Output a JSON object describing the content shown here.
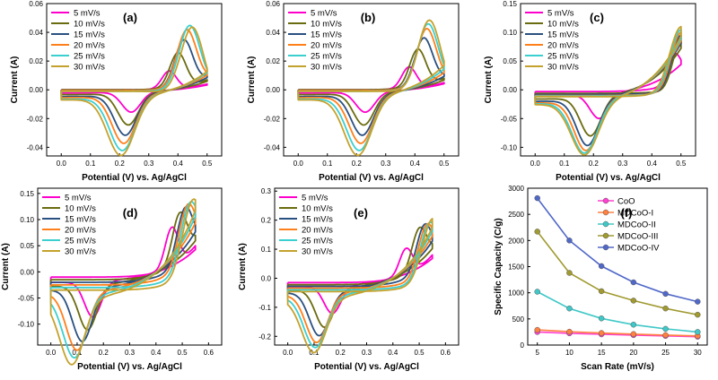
{
  "chart_data": [
    {
      "type": "line",
      "panel_label": "(a)",
      "xlabel": "Potential (V) vs. Ag/AgCl",
      "ylabel": "Current (A)",
      "xlim": [
        -0.05,
        0.55
      ],
      "ylim": [
        -0.046,
        0.06
      ],
      "xticks": [
        0.0,
        0.1,
        0.2,
        0.3,
        0.4,
        0.5
      ],
      "xtick_labels": [
        "0.0",
        "0.1",
        "0.2",
        "0.3",
        "0.4",
        "0.5"
      ],
      "yticks": [
        -0.04,
        -0.02,
        0.0,
        0.02,
        0.04,
        0.06
      ],
      "ytick_labels": [
        "-0.04",
        "-0.02",
        "0.00",
        "0.02",
        "0.04",
        "0.06"
      ],
      "legend": "top-left",
      "curve": {
        "vmin": 0.0,
        "vmax": 0.5,
        "anodic_peak_v": [
          0.37,
          0.4,
          0.42,
          0.43,
          0.44,
          0.45
        ],
        "anodic_peak_i": [
          0.0125,
          0.024,
          0.032,
          0.039,
          0.044,
          0.047
        ],
        "cathodic_peak_v": [
          0.24,
          0.23,
          0.22,
          0.215,
          0.21,
          0.205
        ],
        "cathodic_peak_i": [
          -0.014,
          -0.022,
          -0.028,
          -0.033,
          -0.037,
          -0.04
        ],
        "end_current": [
          0.004,
          0.007,
          0.01,
          0.012,
          0.014,
          0.015
        ],
        "baseline": [
          0.0,
          0.0,
          -0.0005,
          -0.0005,
          -0.001,
          -0.001
        ]
      },
      "series": [
        {
          "name": "5 mV/s"
        },
        {
          "name": "10 mV/s"
        },
        {
          "name": "15 mV/s"
        },
        {
          "name": "20 mV/s"
        },
        {
          "name": "25 mV/s"
        },
        {
          "name": "30 mV/s"
        }
      ]
    },
    {
      "type": "line",
      "panel_label": "(b)",
      "xlabel": "Potential (V) vs. Ag/AgCl",
      "ylabel": "Current (A)",
      "xlim": [
        -0.05,
        0.55
      ],
      "ylim": [
        -0.046,
        0.06
      ],
      "xticks": [
        0.0,
        0.1,
        0.2,
        0.3,
        0.4,
        0.5
      ],
      "xtick_labels": [
        "0.0",
        "0.1",
        "0.2",
        "0.3",
        "0.4",
        "0.5"
      ],
      "yticks": [
        -0.04,
        -0.02,
        0.0,
        0.02,
        0.04,
        0.06
      ],
      "ytick_labels": [
        "-0.04",
        "-0.02",
        "0.00",
        "0.02",
        "0.04",
        "0.06"
      ],
      "legend": "top-left",
      "curve": {
        "vmin": 0.0,
        "vmax": 0.5,
        "anodic_peak_v": [
          0.38,
          0.41,
          0.43,
          0.44,
          0.445,
          0.45
        ],
        "anodic_peak_i": [
          0.015,
          0.026,
          0.033,
          0.04,
          0.045,
          0.05
        ],
        "cathodic_peak_v": [
          0.23,
          0.225,
          0.22,
          0.215,
          0.21,
          0.205
        ],
        "cathodic_peak_i": [
          -0.014,
          -0.022,
          -0.028,
          -0.033,
          -0.037,
          -0.04
        ],
        "end_current": [
          0.005,
          0.008,
          0.011,
          0.014,
          0.017,
          0.02
        ],
        "baseline": [
          0.0,
          0.0,
          -0.0005,
          -0.0005,
          -0.001,
          -0.001
        ]
      },
      "series": [
        {
          "name": "5 mV/s"
        },
        {
          "name": "10 mV/s"
        },
        {
          "name": "15 mV/s"
        },
        {
          "name": "20 mV/s"
        },
        {
          "name": "25 mV/s"
        },
        {
          "name": "30 mV/s"
        }
      ]
    },
    {
      "type": "line",
      "panel_label": "(c)",
      "xlabel": "Potential (V) vs. Ag/AgCl",
      "ylabel": "Current (A)",
      "xlim": [
        -0.05,
        0.55
      ],
      "ylim": [
        -0.115,
        0.15
      ],
      "xticks": [
        0.0,
        0.1,
        0.2,
        0.3,
        0.4,
        0.5
      ],
      "xtick_labels": [
        "0.0",
        "0.1",
        "0.2",
        "0.3",
        "0.4",
        "0.5"
      ],
      "yticks": [
        -0.1,
        -0.05,
        0.0,
        0.05,
        0.1,
        0.15
      ],
      "ytick_labels": [
        "-0.10",
        "-0.05",
        "0.00",
        "0.05",
        "0.10",
        "0.15"
      ],
      "legend": "top-left",
      "curve": {
        "vmin": 0.0,
        "vmax": 0.5,
        "anodic_peak_v": [
          0.48,
          0.5,
          0.5,
          0.5,
          0.5,
          0.5
        ],
        "anodic_peak_i": [
          0.052,
          0.085,
          0.095,
          0.1,
          0.105,
          0.11
        ],
        "cathodic_peak_v": [
          0.22,
          0.19,
          0.18,
          0.175,
          0.17,
          0.17
        ],
        "cathodic_peak_i": [
          -0.043,
          -0.067,
          -0.08,
          -0.086,
          -0.089,
          -0.091
        ],
        "end_current": [
          0.052,
          0.085,
          0.095,
          0.1,
          0.105,
          0.11
        ],
        "baseline": [
          -0.003,
          -0.006,
          -0.008,
          -0.01,
          -0.011,
          -0.012
        ]
      },
      "series": [
        {
          "name": "5 mV/s"
        },
        {
          "name": "10 mV/s"
        },
        {
          "name": "15 mV/s"
        },
        {
          "name": "20 mV/s"
        },
        {
          "name": "25 mV/s"
        },
        {
          "name": "30 mV/s"
        }
      ]
    },
    {
      "type": "line",
      "panel_label": "(d)",
      "xlabel": "Potential (V) vs. Ag/AgCl",
      "ylabel": "Current (A)",
      "xlim": [
        -0.05,
        0.65
      ],
      "ylim": [
        -0.14,
        0.16
      ],
      "xticks": [
        0.0,
        0.1,
        0.2,
        0.3,
        0.4,
        0.5,
        0.6
      ],
      "xtick_labels": [
        "0.0",
        "0.1",
        "0.2",
        "0.3",
        "0.4",
        "0.5",
        "0.6"
      ],
      "yticks": [
        -0.1,
        -0.05,
        0.0,
        0.05,
        0.1,
        0.15
      ],
      "ytick_labels": [
        "-0.10",
        "-0.05",
        "0.00",
        "0.05",
        "0.10",
        "0.15"
      ],
      "legend": "top-left",
      "curve": {
        "vmin": 0.0,
        "vmax": 0.55,
        "anodic_peak_v": [
          0.46,
          0.49,
          0.51,
          0.52,
          0.53,
          0.54
        ],
        "anodic_peak_i": [
          0.075,
          0.09,
          0.1,
          0.11,
          0.125,
          0.138
        ],
        "cathodic_peak_v": [
          0.16,
          0.14,
          0.12,
          0.1,
          0.09,
          0.08
        ],
        "cathodic_peak_i": [
          -0.068,
          -0.085,
          -0.1,
          -0.11,
          -0.118,
          -0.125
        ],
        "end_current": [
          0.05,
          0.07,
          0.09,
          0.11,
          0.125,
          0.138
        ],
        "baseline": [
          -0.01,
          -0.015,
          -0.02,
          -0.025,
          -0.03,
          -0.035
        ]
      },
      "series": [
        {
          "name": "5 mV/s"
        },
        {
          "name": "10 mV/s"
        },
        {
          "name": "15 mV/s"
        },
        {
          "name": "20 mV/s"
        },
        {
          "name": "25 mV/s"
        },
        {
          "name": "30 mV/s"
        }
      ]
    },
    {
      "type": "line",
      "panel_label": "(e)",
      "xlabel": "Potential (V) vs. Ag/AgCl",
      "ylabel": "Current (A)",
      "xlim": [
        -0.05,
        0.65
      ],
      "ylim": [
        -0.23,
        0.31
      ],
      "xticks": [
        0.0,
        0.1,
        0.2,
        0.3,
        0.4,
        0.5,
        0.6
      ],
      "xtick_labels": [
        "0.0",
        "0.1",
        "0.2",
        "0.3",
        "0.4",
        "0.5",
        "0.6"
      ],
      "yticks": [
        -0.2,
        -0.1,
        0.0,
        0.1,
        0.2,
        0.3
      ],
      "ytick_labels": [
        "-0.2",
        "-0.1",
        "0.0",
        "0.1",
        "0.2",
        "0.3"
      ],
      "legend": "top-left",
      "curve": {
        "vmin": 0.0,
        "vmax": 0.55,
        "anodic_peak_v": [
          0.45,
          0.5,
          0.52,
          0.53,
          0.54,
          0.55
        ],
        "anodic_peak_i": [
          0.09,
          0.13,
          0.155,
          0.175,
          0.19,
          0.205
        ],
        "cathodic_peak_v": [
          0.17,
          0.14,
          0.12,
          0.11,
          0.105,
          0.1
        ],
        "cathodic_peak_i": [
          -0.095,
          -0.13,
          -0.15,
          -0.165,
          -0.175,
          -0.185
        ],
        "end_current": [
          0.08,
          0.12,
          0.15,
          0.17,
          0.19,
          0.205
        ],
        "baseline": [
          -0.015,
          -0.022,
          -0.028,
          -0.034,
          -0.04,
          -0.046
        ]
      },
      "series": [
        {
          "name": "5 mV/s"
        },
        {
          "name": "10 mV/s"
        },
        {
          "name": "15 mV/s"
        },
        {
          "name": "20 mV/s"
        },
        {
          "name": "25 mV/s"
        },
        {
          "name": "30 mV/s"
        }
      ]
    },
    {
      "type": "line",
      "panel_label": "(f)",
      "xlabel": "Scan Rate (mV/s)",
      "ylabel": "Specific Capacity (C/g)",
      "xlim": [
        3.5,
        31.5
      ],
      "ylim": [
        0,
        3000
      ],
      "xticks": [
        5,
        10,
        15,
        20,
        25,
        30
      ],
      "xtick_labels": [
        "5",
        "10",
        "15",
        "20",
        "25",
        "30"
      ],
      "yticks": [
        0,
        500,
        1000,
        1500,
        2000,
        2500,
        3000
      ],
      "ytick_labels": [
        "0",
        "500",
        "1000",
        "1500",
        "2000",
        "2500",
        "3000"
      ],
      "legend": "top-right",
      "x": [
        5,
        10,
        15,
        20,
        25,
        30
      ],
      "series": [
        {
          "name": "CoO",
          "values": [
            250,
            225,
            205,
            190,
            175,
            160
          ]
        },
        {
          "name": "MDCoO-I",
          "values": [
            290,
            255,
            230,
            210,
            190,
            175
          ]
        },
        {
          "name": "MDCoO-II",
          "values": [
            1020,
            700,
            510,
            390,
            310,
            250
          ]
        },
        {
          "name": "MDCoO-III",
          "values": [
            2170,
            1380,
            1030,
            850,
            700,
            580
          ]
        },
        {
          "name": "MDCoO-IV",
          "values": [
            2810,
            2000,
            1510,
            1200,
            980,
            830
          ]
        }
      ]
    }
  ],
  "colors": {
    "cv_series": [
      "#ff00cc",
      "#6b6b10",
      "#2a5080",
      "#ff7f1a",
      "#3ccfcf",
      "#c4a22e"
    ],
    "capacity_series": [
      "#ff40d0",
      "#ff8040",
      "#40c8c8",
      "#a09a30",
      "#5068c8"
    ],
    "axis": "#000000"
  }
}
